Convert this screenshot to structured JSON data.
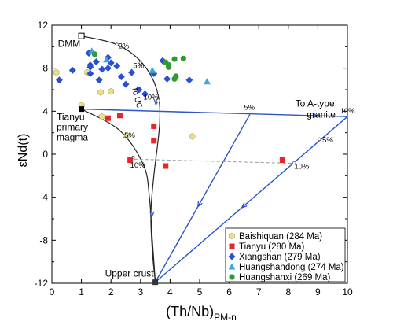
{
  "chart_data": {
    "type": "scatter",
    "xlabel": "(Th/Nb)",
    "xlabel_sub": "PM-n",
    "ylabel": "εNd(t)",
    "xlim": [
      0,
      10
    ],
    "ylim": [
      -12,
      12
    ],
    "x_ticks": [
      0,
      1,
      2,
      3,
      4,
      5,
      6,
      7,
      8,
      9,
      10
    ],
    "y_ticks": [
      12,
      8,
      4,
      0,
      -4,
      -8,
      -12
    ],
    "x_ticklabels": [
      "0",
      "1",
      "2",
      "3",
      "4",
      "5",
      "6",
      "7",
      "8",
      "9",
      "10"
    ],
    "y_ticklabels": [
      "12",
      "8",
      "4",
      "0",
      "-4",
      "-8",
      "-12"
    ],
    "y_minor_ticks": [
      10,
      6,
      2,
      -2,
      -6,
      -10
    ],
    "series": [
      {
        "name": "Baishiquan (284 Ma)",
        "marker": "hexagon",
        "color": "#e8e08c",
        "points": [
          [
            0.15,
            7.6
          ],
          [
            1.2,
            7.6
          ],
          [
            1.65,
            5.75
          ],
          [
            2.0,
            5.85
          ],
          [
            1.0,
            4.55
          ],
          [
            1.7,
            3.5
          ],
          [
            2.55,
            1.7
          ],
          [
            4.75,
            1.65
          ]
        ]
      },
      {
        "name": "Tianyu (280 Ma)",
        "marker": "square",
        "color": "#e8262a",
        "points": [
          [
            1.9,
            3.35
          ],
          [
            2.3,
            3.6
          ],
          [
            3.45,
            2.6
          ],
          [
            3.45,
            1.25
          ],
          [
            2.65,
            -0.55
          ],
          [
            3.85,
            -1.1
          ],
          [
            7.8,
            -0.55
          ]
        ]
      },
      {
        "name": "Xiangshan (279 Ma)",
        "marker": "diamond",
        "color": "#2c4fcf",
        "points": [
          [
            0.25,
            6.9
          ],
          [
            0.7,
            7.8
          ],
          [
            1.25,
            9.4
          ],
          [
            1.3,
            8.3
          ],
          [
            1.3,
            8.1
          ],
          [
            1.3,
            7.5
          ],
          [
            1.5,
            8.6
          ],
          [
            1.6,
            6.9
          ],
          [
            1.7,
            7.9
          ],
          [
            1.9,
            9.0
          ],
          [
            2.0,
            8.5
          ],
          [
            1.9,
            8.0
          ],
          [
            2.2,
            8.2
          ],
          [
            2.35,
            7.2
          ],
          [
            2.5,
            6.5
          ],
          [
            2.7,
            7.6
          ],
          [
            2.95,
            6.0
          ],
          [
            3.15,
            5.6
          ],
          [
            3.45,
            7.5
          ],
          [
            3.75,
            8.7
          ],
          [
            3.9,
            7.0
          ],
          [
            4.65,
            6.9
          ]
        ]
      },
      {
        "name": "Huangshandong (274 Ma)",
        "marker": "triangle",
        "color": "#3aa6d9",
        "points": [
          [
            1.35,
            9.6
          ],
          [
            1.85,
            8.8
          ],
          [
            3.4,
            7.8
          ],
          [
            5.25,
            6.75
          ]
        ]
      },
      {
        "name": "Huangshanxi (269 Ma)",
        "marker": "circle",
        "color": "#2e9a32",
        "points": [
          [
            1.45,
            9.3
          ],
          [
            3.85,
            8.55
          ],
          [
            3.95,
            8.3
          ],
          [
            3.95,
            8.1
          ],
          [
            4.15,
            8.85
          ],
          [
            4.2,
            7.25
          ],
          [
            4.15,
            7.0
          ],
          [
            4.45,
            8.9
          ]
        ]
      }
    ],
    "endmembers": [
      {
        "name": "DMM",
        "x": 1.0,
        "y": 11.0
      },
      {
        "name": "Tianyu primary magma",
        "x": 1.0,
        "y": 4.2
      },
      {
        "name": "Upper crust",
        "x": 3.5,
        "y": -11.9
      },
      {
        "name": "To A-type granite",
        "x": 10.0,
        "y": 3.5
      }
    ],
    "mixing_curves": {
      "dmm_to_crust": [
        [
          1.0,
          11.0
        ],
        [
          2.2,
          10.2
        ],
        [
          3.05,
          8.5
        ],
        [
          3.55,
          6.0
        ],
        [
          3.65,
          3.0
        ],
        [
          3.45,
          -2.0
        ],
        [
          3.35,
          -5.5
        ],
        [
          3.4,
          -9.0
        ],
        [
          3.5,
          -11.9
        ]
      ],
      "crust_to_granite_right": [
        [
          3.5,
          -11.9
        ],
        [
          10.0,
          3.5
        ]
      ],
      "crust_to_granite_left": [
        [
          3.5,
          -11.9
        ],
        [
          6.7,
          3.7
        ]
      ],
      "primary_to_granite": [
        [
          1.0,
          4.2
        ],
        [
          10.0,
          3.5
        ]
      ],
      "primary_to_crust": [
        [
          1.0,
          4.2
        ],
        [
          2.3,
          2.2
        ],
        [
          3.1,
          -1.0
        ],
        [
          3.3,
          -4.0
        ],
        [
          3.4,
          -8.0
        ],
        [
          3.5,
          -11.9
        ]
      ],
      "dashed_mix": [
        [
          2.6,
          -0.45
        ],
        [
          8.2,
          -0.85
        ]
      ]
    },
    "annotations": [
      {
        "text": "2%",
        "x": 2.25,
        "y": 9.85
      },
      {
        "text": "5%",
        "x": 2.75,
        "y": 8.0
      },
      {
        "text": "10%",
        "x": 3.1,
        "y": 5.1
      },
      {
        "text": "To UC",
        "x": 2.7,
        "y": 6.2
      },
      {
        "text": "5%",
        "x": 2.45,
        "y": 1.55
      },
      {
        "text": "10%",
        "x": 2.65,
        "y": -1.25
      },
      {
        "text": "5%",
        "x": 6.5,
        "y": 4.15
      },
      {
        "text": "10%",
        "x": 9.75,
        "y": 3.8
      },
      {
        "text": "5%",
        "x": 9.15,
        "y": 1.1
      },
      {
        "text": "10%",
        "x": 8.2,
        "y": -1.35
      }
    ],
    "legend_position": "bottom-right",
    "grid": false
  }
}
